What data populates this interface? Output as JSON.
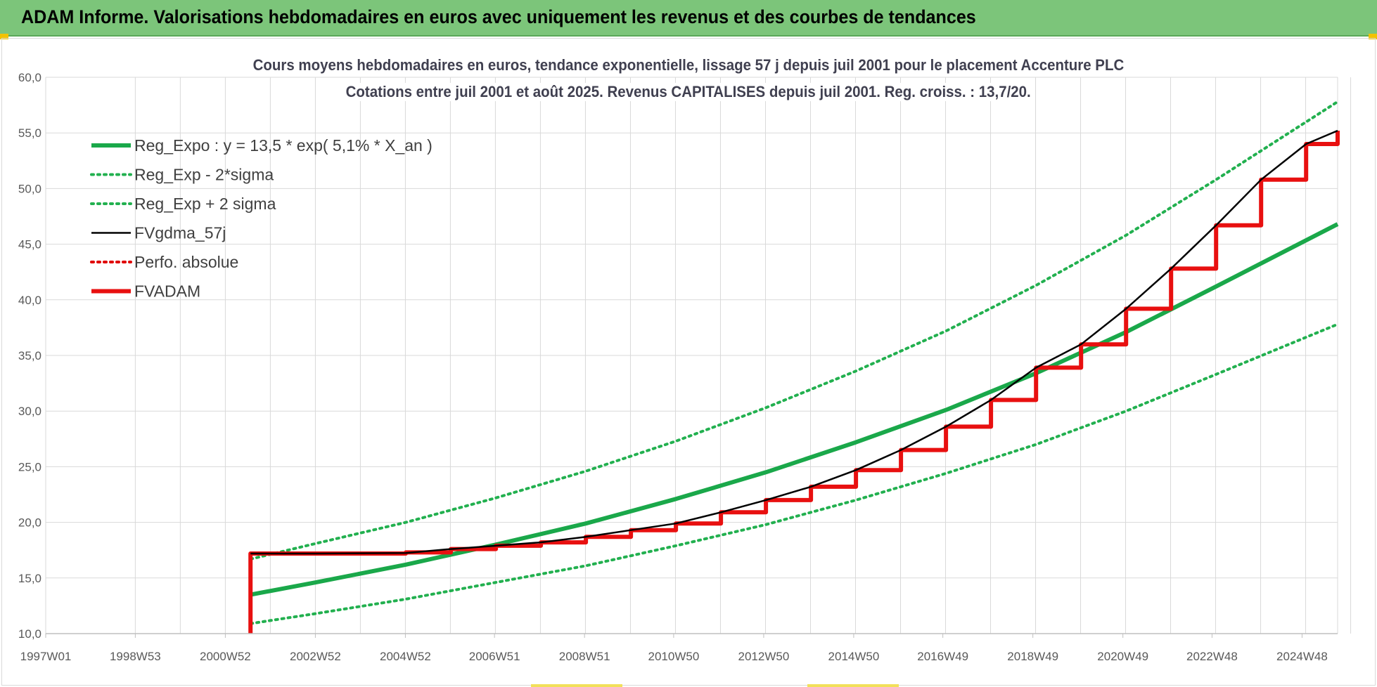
{
  "banner": {
    "title": "ADAM Informe. Valorisations hebdomadaires en euros avec uniquement les revenus et des courbes de tendances"
  },
  "colors": {
    "banner_bg": "#7cc57a",
    "reg_green": "#1aa84a",
    "sigma_green": "#22b04f",
    "fvgdma_black": "#000000",
    "perfo_red": "#e00000",
    "fvadam_red": "#e81010",
    "grid": "#d9d9d9",
    "text": "#404050"
  },
  "chart_data": {
    "type": "line",
    "title_line1": "Cours moyens hebdomadaires en euros, tendance exponentielle, lissage 57 j depuis juil 2001 pour le placement Accenture PLC",
    "title_line2": "Cotations entre juil 2001 et août 2025. Revenus CAPITALISES depuis juil 2001. Reg. croiss. : 13,7/20.",
    "xlabel": "",
    "ylabel": "",
    "x_range": [
      1997.0,
      2025.7
    ],
    "ylim": [
      10,
      60
    ],
    "y_ticks": [
      "10,0",
      "15,0",
      "20,0",
      "25,0",
      "30,0",
      "35,0",
      "40,0",
      "45,0",
      "50,0",
      "55,0",
      "60,0"
    ],
    "x_ticks": [
      {
        "label": "1997W01",
        "x": 1997.0
      },
      {
        "label": "1998W53",
        "x": 1998.99
      },
      {
        "label": "2000W52",
        "x": 2000.99
      },
      {
        "label": "2002W52",
        "x": 2002.99
      },
      {
        "label": "2004W52",
        "x": 2004.99
      },
      {
        "label": "2006W51",
        "x": 2006.97
      },
      {
        "label": "2008W51",
        "x": 2008.97
      },
      {
        "label": "2010W50",
        "x": 2010.95
      },
      {
        "label": "2012W50",
        "x": 2012.95
      },
      {
        "label": "2014W50",
        "x": 2014.95
      },
      {
        "label": "2016W49",
        "x": 2016.93
      },
      {
        "label": "2018W49",
        "x": 2018.93
      },
      {
        "label": "2020W49",
        "x": 2020.93
      },
      {
        "label": "2022W48",
        "x": 2022.91
      },
      {
        "label": "2024W48",
        "x": 2024.91
      }
    ],
    "grid": true,
    "legend_position": "top-left",
    "series": [
      {
        "name": "Reg_Expo : y = 13,5 * exp( 5,1% *  X_an )",
        "style": "solid-thick",
        "color": "#1aa84a",
        "x": [
          2001.55,
          2003,
          2005,
          2007,
          2009,
          2011,
          2013,
          2015,
          2017,
          2019,
          2021,
          2023,
          2025.7
        ],
        "y": [
          13.5,
          14.6,
          16.2,
          18.0,
          19.9,
          22.1,
          24.5,
          27.2,
          30.1,
          33.4,
          37.1,
          41.2,
          46.8
        ]
      },
      {
        "name": "Reg_Exp - 2*sigma",
        "style": "dotted",
        "color": "#22b04f",
        "x": [
          2001.55,
          2003,
          2005,
          2007,
          2009,
          2011,
          2013,
          2015,
          2017,
          2019,
          2021,
          2023,
          2025.7
        ],
        "y": [
          10.9,
          11.8,
          13.1,
          14.6,
          16.1,
          17.9,
          19.8,
          22.0,
          24.4,
          27.0,
          30.0,
          33.3,
          37.8
        ]
      },
      {
        "name": "Reg_Exp + 2 sigma",
        "style": "dotted",
        "color": "#22b04f",
        "x": [
          2001.55,
          2003,
          2005,
          2007,
          2009,
          2011,
          2013,
          2015,
          2017,
          2019,
          2021,
          2023,
          2025.7
        ],
        "y": [
          16.7,
          18.1,
          20.0,
          22.2,
          24.6,
          27.3,
          30.3,
          33.6,
          37.2,
          41.3,
          45.8,
          50.8,
          57.8
        ]
      },
      {
        "name": "FVgdma_57j",
        "style": "solid",
        "color": "#000000",
        "x": [
          2001.55,
          2003,
          2005,
          2006,
          2007,
          2008,
          2009,
          2010,
          2011,
          2012,
          2013,
          2014,
          2015,
          2016,
          2017,
          2018,
          2019,
          2020,
          2021,
          2022,
          2023,
          2024,
          2025,
          2025.7
        ],
        "y": [
          17.2,
          17.2,
          17.25,
          17.6,
          17.9,
          18.2,
          18.7,
          19.3,
          19.9,
          20.9,
          22.0,
          23.2,
          24.7,
          26.5,
          28.6,
          31.0,
          33.9,
          36.0,
          39.2,
          42.8,
          46.7,
          50.8,
          54.0,
          55.2
        ]
      },
      {
        "name": "Perfo. absolue",
        "style": "dotted",
        "color": "#e00000",
        "x": [],
        "y": []
      },
      {
        "name": "FVADAM",
        "style": "step-thick",
        "color": "#e81010",
        "x": [
          2001.55,
          2001.55,
          2003,
          2005,
          2006,
          2007,
          2008,
          2009,
          2010,
          2011,
          2012,
          2013,
          2014,
          2015,
          2016,
          2017,
          2018,
          2019,
          2020,
          2021,
          2022,
          2023,
          2024,
          2025,
          2025.7
        ],
        "y": [
          10.0,
          17.2,
          17.2,
          17.3,
          17.6,
          17.9,
          18.2,
          18.7,
          19.3,
          19.9,
          20.9,
          22.0,
          23.2,
          24.7,
          26.5,
          28.6,
          31.0,
          33.9,
          36.0,
          39.2,
          42.8,
          46.7,
          50.8,
          54.0,
          55.2
        ]
      }
    ]
  }
}
